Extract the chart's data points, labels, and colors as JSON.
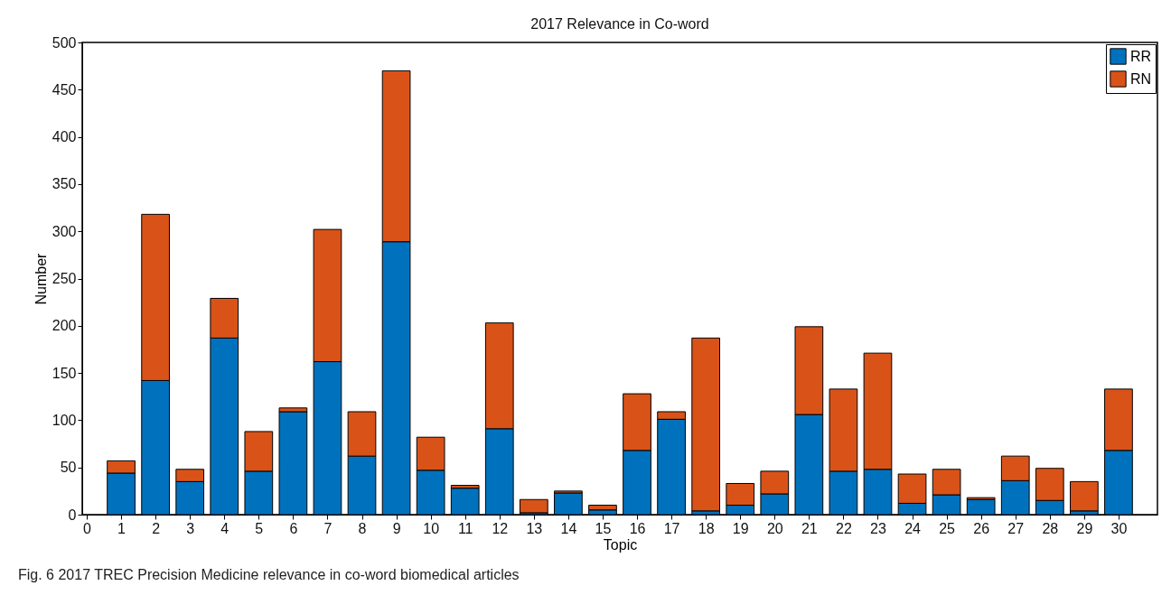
{
  "chart_data": {
    "type": "bar",
    "title": "2017 Relevance in Co-word",
    "xlabel": "Topic",
    "ylabel": "Number",
    "x": [
      1,
      2,
      3,
      4,
      5,
      6,
      7,
      8,
      9,
      10,
      11,
      12,
      13,
      14,
      15,
      16,
      17,
      18,
      19,
      20,
      21,
      22,
      23,
      24,
      25,
      26,
      27,
      28,
      29,
      30
    ],
    "series": [
      {
        "name": "RR",
        "color": "#0072bd",
        "values": [
          44,
          142,
          35,
          187,
          46,
          109,
          162,
          62,
          289,
          47,
          28,
          91,
          2,
          23,
          5,
          68,
          101,
          4,
          10,
          22,
          106,
          46,
          48,
          12,
          21,
          16,
          36,
          15,
          4,
          68
        ]
      },
      {
        "name": "RN",
        "color": "#d95319",
        "values": [
          13,
          176,
          13,
          42,
          42,
          4,
          140,
          47,
          181,
          35,
          3,
          112,
          14,
          2,
          5,
          60,
          8,
          183,
          23,
          24,
          93,
          87,
          123,
          31,
          27,
          2,
          26,
          34,
          31,
          65
        ]
      }
    ],
    "stacked": true,
    "xlim": [
      0,
      31
    ],
    "xticks": [
      0,
      1,
      2,
      3,
      4,
      5,
      6,
      7,
      8,
      9,
      10,
      11,
      12,
      13,
      14,
      15,
      16,
      17,
      18,
      19,
      20,
      21,
      22,
      23,
      24,
      25,
      26,
      27,
      28,
      29,
      30
    ],
    "ylim": [
      0,
      500
    ],
    "yticks": [
      0,
      50,
      100,
      150,
      200,
      250,
      300,
      350,
      400,
      450,
      500
    ],
    "grid": false,
    "legend": "top right",
    "annotations": [
      "Fig. 6 2017 TREC Precision Medicine relevance in co-word biomedical articles"
    ]
  }
}
